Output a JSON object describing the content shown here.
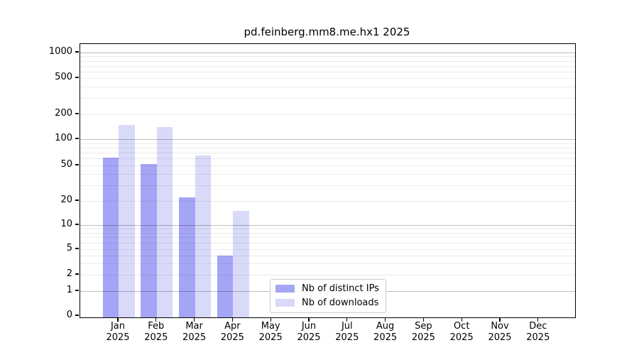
{
  "chart_data": {
    "type": "bar",
    "title": "pd.feinberg.mm8.me.hx1 2025",
    "months": [
      "Jan",
      "Feb",
      "Mar",
      "Apr",
      "May",
      "Jun",
      "Jul",
      "Aug",
      "Sep",
      "Oct",
      "Nov",
      "Dec"
    ],
    "year": "2025",
    "series": [
      {
        "name": "Nb of distinct IPs",
        "color": "#a5a5f5",
        "values": [
          62,
          52,
          22,
          4,
          0,
          0,
          0,
          0,
          0,
          0,
          0,
          0
        ]
      },
      {
        "name": "Nb of downloads",
        "color": "#d9d9fa",
        "values": [
          150,
          140,
          65,
          15,
          0,
          0,
          0,
          0,
          0,
          0,
          0,
          0
        ]
      }
    ],
    "yscale": "symlog",
    "y_ticks": [
      0,
      1,
      2,
      5,
      10,
      20,
      50,
      100,
      200,
      500,
      1000
    ],
    "ylim": [
      0,
      1000
    ],
    "grid": "horizontal, log minors",
    "legend_position": "inside lower-center"
  }
}
